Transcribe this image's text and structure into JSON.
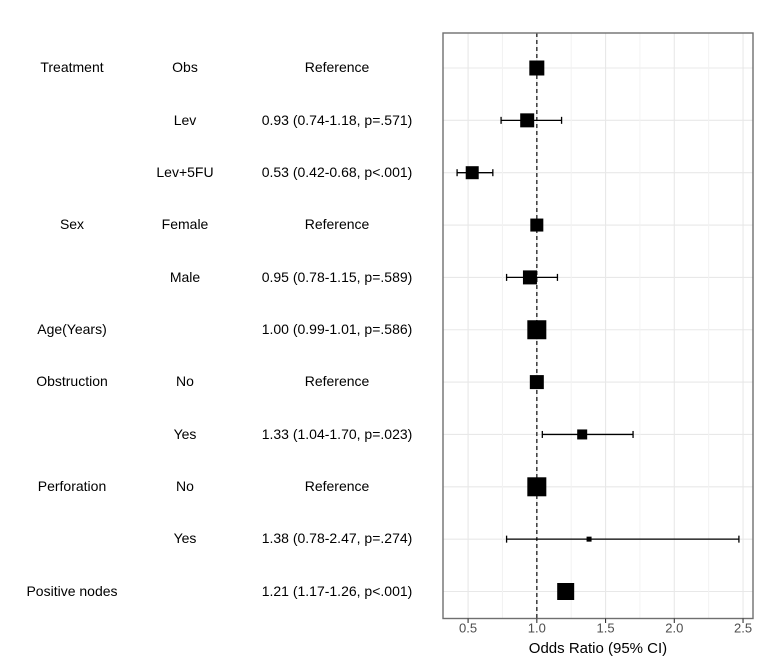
{
  "figure": {
    "background": "#ffffff"
  },
  "chart_data": {
    "type": "forest",
    "title": "",
    "xlabel": "Odds Ratio (95% CI)",
    "xlim": [
      0.3175,
      2.5725
    ],
    "x_major_ticks": [
      {
        "value": 0.5,
        "label": "0.5"
      },
      {
        "value": 1.0,
        "label": "1.0"
      },
      {
        "value": 1.5,
        "label": "1.5"
      },
      {
        "value": 2.0,
        "label": "2.0"
      },
      {
        "value": 2.5,
        "label": "2.5"
      }
    ],
    "x_minor_gridlines": [
      0.75,
      1.25,
      1.75,
      2.25
    ],
    "reference_line": 1.0,
    "grid": true,
    "legend": "none",
    "rows": [
      {
        "term": "Treatment",
        "level": "Obs",
        "estimate": "Reference",
        "or": 1.0,
        "ci_low": null,
        "ci_high": null,
        "p": null,
        "marker_size": 15
      },
      {
        "term": "",
        "level": "Lev",
        "estimate": "0.93 (0.74-1.18, p=.571)",
        "or": 0.93,
        "ci_low": 0.74,
        "ci_high": 1.18,
        "p": "=.571",
        "marker_size": 14
      },
      {
        "term": "",
        "level": "Lev+5FU",
        "estimate": "0.53 (0.42-0.68, p<.001)",
        "or": 0.53,
        "ci_low": 0.42,
        "ci_high": 0.68,
        "p": "<.001",
        "marker_size": 13
      },
      {
        "term": "Sex",
        "level": "Female",
        "estimate": "Reference",
        "or": 1.0,
        "ci_low": null,
        "ci_high": null,
        "p": null,
        "marker_size": 13
      },
      {
        "term": "",
        "level": "Male",
        "estimate": "0.95 (0.78-1.15, p=.589)",
        "or": 0.95,
        "ci_low": 0.78,
        "ci_high": 1.15,
        "p": "=.589",
        "marker_size": 14
      },
      {
        "term": "Age(Years)",
        "level": "",
        "estimate": "1.00 (0.99-1.01, p=.586)",
        "or": 1.0,
        "ci_low": 0.99,
        "ci_high": 1.01,
        "p": "=.586",
        "marker_size": 19
      },
      {
        "term": "Obstruction",
        "level": "No",
        "estimate": "Reference",
        "or": 1.0,
        "ci_low": null,
        "ci_high": null,
        "p": null,
        "marker_size": 14
      },
      {
        "term": "",
        "level": "Yes",
        "estimate": "1.33 (1.04-1.70, p=.023)",
        "or": 1.33,
        "ci_low": 1.04,
        "ci_high": 1.7,
        "p": "=.023",
        "marker_size": 10
      },
      {
        "term": "Perforation",
        "level": "No",
        "estimate": "Reference",
        "or": 1.0,
        "ci_low": null,
        "ci_high": null,
        "p": null,
        "marker_size": 19
      },
      {
        "term": "",
        "level": "Yes",
        "estimate": "1.38 (0.78-2.47, p=.274)",
        "or": 1.38,
        "ci_low": 0.78,
        "ci_high": 2.47,
        "p": "=.274",
        "marker_size": 5
      },
      {
        "term": "Positive nodes",
        "level": "",
        "estimate": "1.21 (1.17-1.26, p<.001)",
        "or": 1.21,
        "ci_low": 1.17,
        "ci_high": 1.26,
        "p": "<.001",
        "marker_size": 17
      }
    ],
    "colors": {
      "marker": "#000000",
      "ci_line": "#000000",
      "reference_line": "#2b2b2b",
      "grid_major": "#e8e8e8",
      "grid_minor": "#f2f2f2",
      "panel_border": "#6f6f6f",
      "tick_mark": "#333333",
      "tick_label": "#4d4d4d",
      "text": "#000000"
    }
  }
}
